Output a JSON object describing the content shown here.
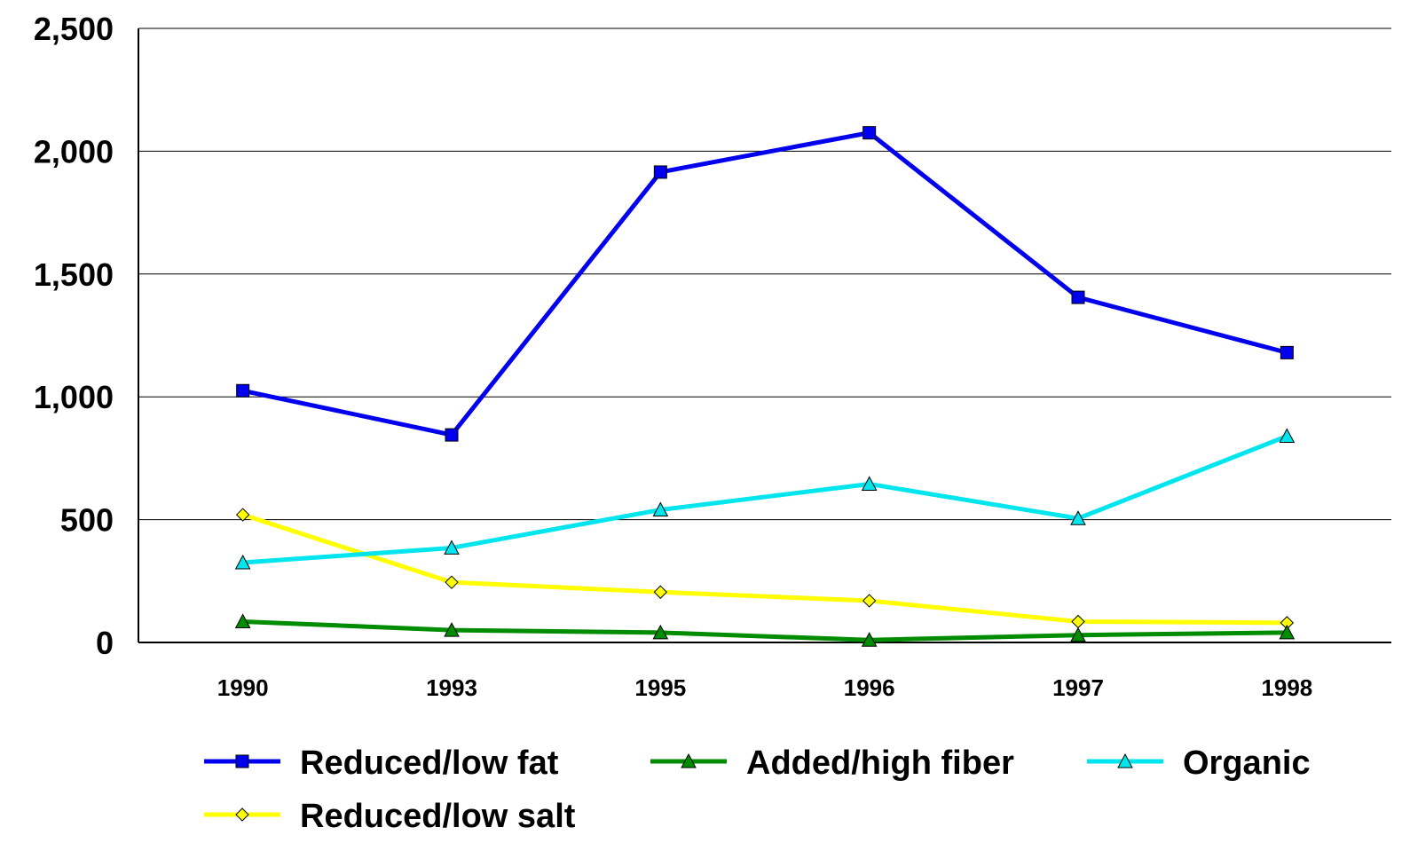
{
  "chart_data": {
    "type": "line",
    "title": "",
    "xlabel": "",
    "ylabel": "",
    "categories": [
      "1990",
      "1993",
      "1995",
      "1996",
      "1997",
      "1998"
    ],
    "ylim": [
      0,
      2500
    ],
    "yticks": [
      "0",
      "500",
      "1,000",
      "1,500",
      "2,000",
      "2,500"
    ],
    "ytick_values": [
      0,
      500,
      1000,
      1500,
      2000,
      2500
    ],
    "grid": true,
    "legend_position": "bottom",
    "series": [
      {
        "name": "Reduced/low fat",
        "values": [
          1025,
          845,
          1915,
          2075,
          1405,
          1180
        ],
        "color": "#0000EE",
        "marker": "square"
      },
      {
        "name": "Added/high fiber",
        "values": [
          85,
          50,
          40,
          10,
          30,
          40
        ],
        "color": "#008C00",
        "marker": "triangle"
      },
      {
        "name": "Organic",
        "values": [
          325,
          385,
          540,
          645,
          505,
          840
        ],
        "color": "#00E5EE",
        "marker": "triangle"
      },
      {
        "name": "Reduced/low salt",
        "values": [
          520,
          245,
          205,
          170,
          85,
          80
        ],
        "color": "#FFFF00",
        "marker": "diamond"
      }
    ]
  }
}
